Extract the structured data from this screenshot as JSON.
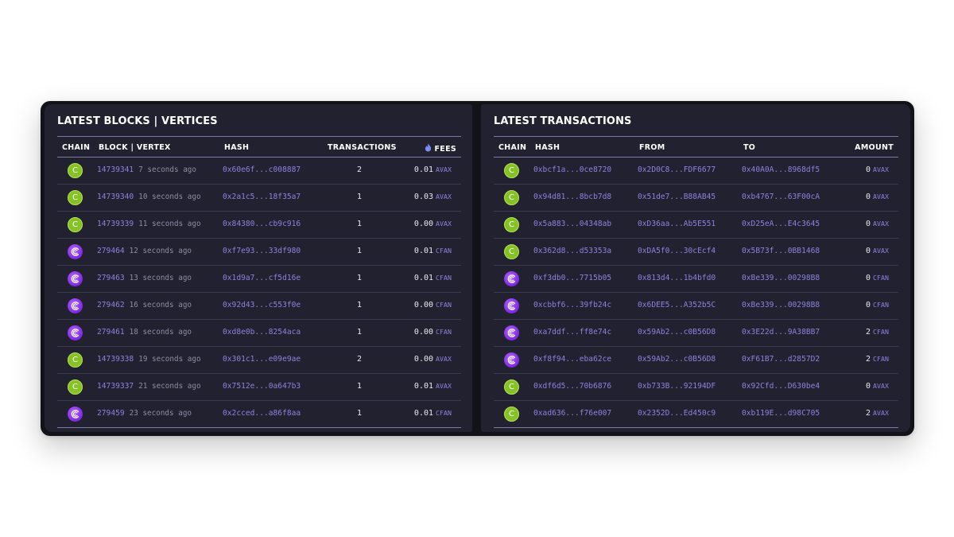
{
  "blocks": {
    "title": "LATEST BLOCKS | VERTICES",
    "headers": {
      "chain": "CHAIN",
      "block": "BLOCK | VERTEX",
      "hash": "HASH",
      "transactions": "TRANSACTIONS",
      "fees": "FEES"
    },
    "rows": [
      {
        "chain": "C",
        "chain_icon": "c-chain-icon",
        "id": "14739341",
        "age": "7 seconds ago",
        "hash": "0x60e6f...c008887",
        "txs": "2",
        "fee": "0.01",
        "unit": "AVAX"
      },
      {
        "chain": "C",
        "chain_icon": "c-chain-icon",
        "id": "14739340",
        "age": "10 seconds ago",
        "hash": "0x2a1c5...18f35a7",
        "txs": "1",
        "fee": "0.03",
        "unit": "AVAX"
      },
      {
        "chain": "C",
        "chain_icon": "c-chain-icon",
        "id": "14739339",
        "age": "11 seconds ago",
        "hash": "0x84380...cb9c916",
        "txs": "1",
        "fee": "0.00",
        "unit": "AVAX"
      },
      {
        "chain": "",
        "chain_icon": "cfan-chain-icon",
        "id": "279464",
        "age": "12 seconds ago",
        "hash": "0xf7e93...33df980",
        "txs": "1",
        "fee": "0.01",
        "unit": "CFAN"
      },
      {
        "chain": "",
        "chain_icon": "cfan-chain-icon",
        "id": "279463",
        "age": "13 seconds ago",
        "hash": "0x1d9a7...cf5d16e",
        "txs": "1",
        "fee": "0.01",
        "unit": "CFAN"
      },
      {
        "chain": "",
        "chain_icon": "cfan-chain-icon",
        "id": "279462",
        "age": "16 seconds ago",
        "hash": "0x92d43...c553f0e",
        "txs": "1",
        "fee": "0.00",
        "unit": "CFAN"
      },
      {
        "chain": "",
        "chain_icon": "cfan-chain-icon",
        "id": "279461",
        "age": "18 seconds ago",
        "hash": "0xd8e0b...8254aca",
        "txs": "1",
        "fee": "0.00",
        "unit": "CFAN"
      },
      {
        "chain": "C",
        "chain_icon": "c-chain-icon",
        "id": "14739338",
        "age": "19 seconds ago",
        "hash": "0x301c1...e09e9ae",
        "txs": "2",
        "fee": "0.00",
        "unit": "AVAX"
      },
      {
        "chain": "C",
        "chain_icon": "c-chain-icon",
        "id": "14739337",
        "age": "21 seconds ago",
        "hash": "0x7512e...0a647b3",
        "txs": "1",
        "fee": "0.01",
        "unit": "AVAX"
      },
      {
        "chain": "",
        "chain_icon": "cfan-chain-icon",
        "id": "279459",
        "age": "23 seconds ago",
        "hash": "0x2cced...a86f8aa",
        "txs": "1",
        "fee": "0.01",
        "unit": "CFAN"
      }
    ]
  },
  "transactions": {
    "title": "LATEST TRANSACTIONS",
    "headers": {
      "chain": "CHAIN",
      "hash": "HASH",
      "from": "FROM",
      "to": "TO",
      "amount": "AMOUNT"
    },
    "rows": [
      {
        "chain": "C",
        "chain_icon": "c-chain-icon",
        "hash": "0xbcf1a...0ce8720",
        "from": "0x2D0C8...FDF6677",
        "to": "0x40A0A...8968df5",
        "amount": "0",
        "unit": "AVAX"
      },
      {
        "chain": "C",
        "chain_icon": "c-chain-icon",
        "hash": "0x94d81...8bcb7d8",
        "from": "0x51de7...B88AB45",
        "to": "0xb4767...63F00cA",
        "amount": "0",
        "unit": "AVAX"
      },
      {
        "chain": "C",
        "chain_icon": "c-chain-icon",
        "hash": "0x5a883...04348ab",
        "from": "0xD36aa...Ab5E551",
        "to": "0xD25eA...E4c3645",
        "amount": "0",
        "unit": "AVAX"
      },
      {
        "chain": "C",
        "chain_icon": "c-chain-icon",
        "hash": "0x362d8...d53353a",
        "from": "0xDA5f0...30cEcf4",
        "to": "0x5B73f...0BB1468",
        "amount": "0",
        "unit": "AVAX"
      },
      {
        "chain": "",
        "chain_icon": "cfan-chain-icon",
        "hash": "0xf3db0...7715b05",
        "from": "0x813d4...1b4bfd0",
        "to": "0xBe339...00298B8",
        "amount": "0",
        "unit": "CFAN"
      },
      {
        "chain": "",
        "chain_icon": "cfan-chain-icon",
        "hash": "0xcbbf6...39fb24c",
        "from": "0x6DEE5...A352b5C",
        "to": "0xBe339...00298B8",
        "amount": "0",
        "unit": "CFAN"
      },
      {
        "chain": "",
        "chain_icon": "cfan-chain-icon",
        "hash": "0xa7ddf...ff8e74c",
        "from": "0x59Ab2...c0B56D8",
        "to": "0x3E22d...9A38BB7",
        "amount": "2",
        "unit": "CFAN"
      },
      {
        "chain": "",
        "chain_icon": "cfan-chain-icon",
        "hash": "0xf8f94...eba62ce",
        "from": "0x59Ab2...c0B56D8",
        "to": "0xF61B7...d2857D2",
        "amount": "2",
        "unit": "CFAN"
      },
      {
        "chain": "C",
        "chain_icon": "c-chain-icon",
        "hash": "0xdf6d5...70b6876",
        "from": "0xb733B...92194DF",
        "to": "0x92Cfd...D630be4",
        "amount": "0",
        "unit": "AVAX"
      },
      {
        "chain": "C",
        "chain_icon": "c-chain-icon",
        "hash": "0xad636...f76e007",
        "from": "0x2352D...Ed450c9",
        "to": "0xb119E...d98C705",
        "amount": "2",
        "unit": "AVAX"
      }
    ]
  },
  "colors": {
    "panel_bg": "#22212f",
    "frame_bg": "#121219",
    "link": "#8b83e0",
    "c_chain": "#84c225",
    "cfan_chain": "#8a2cf0"
  }
}
